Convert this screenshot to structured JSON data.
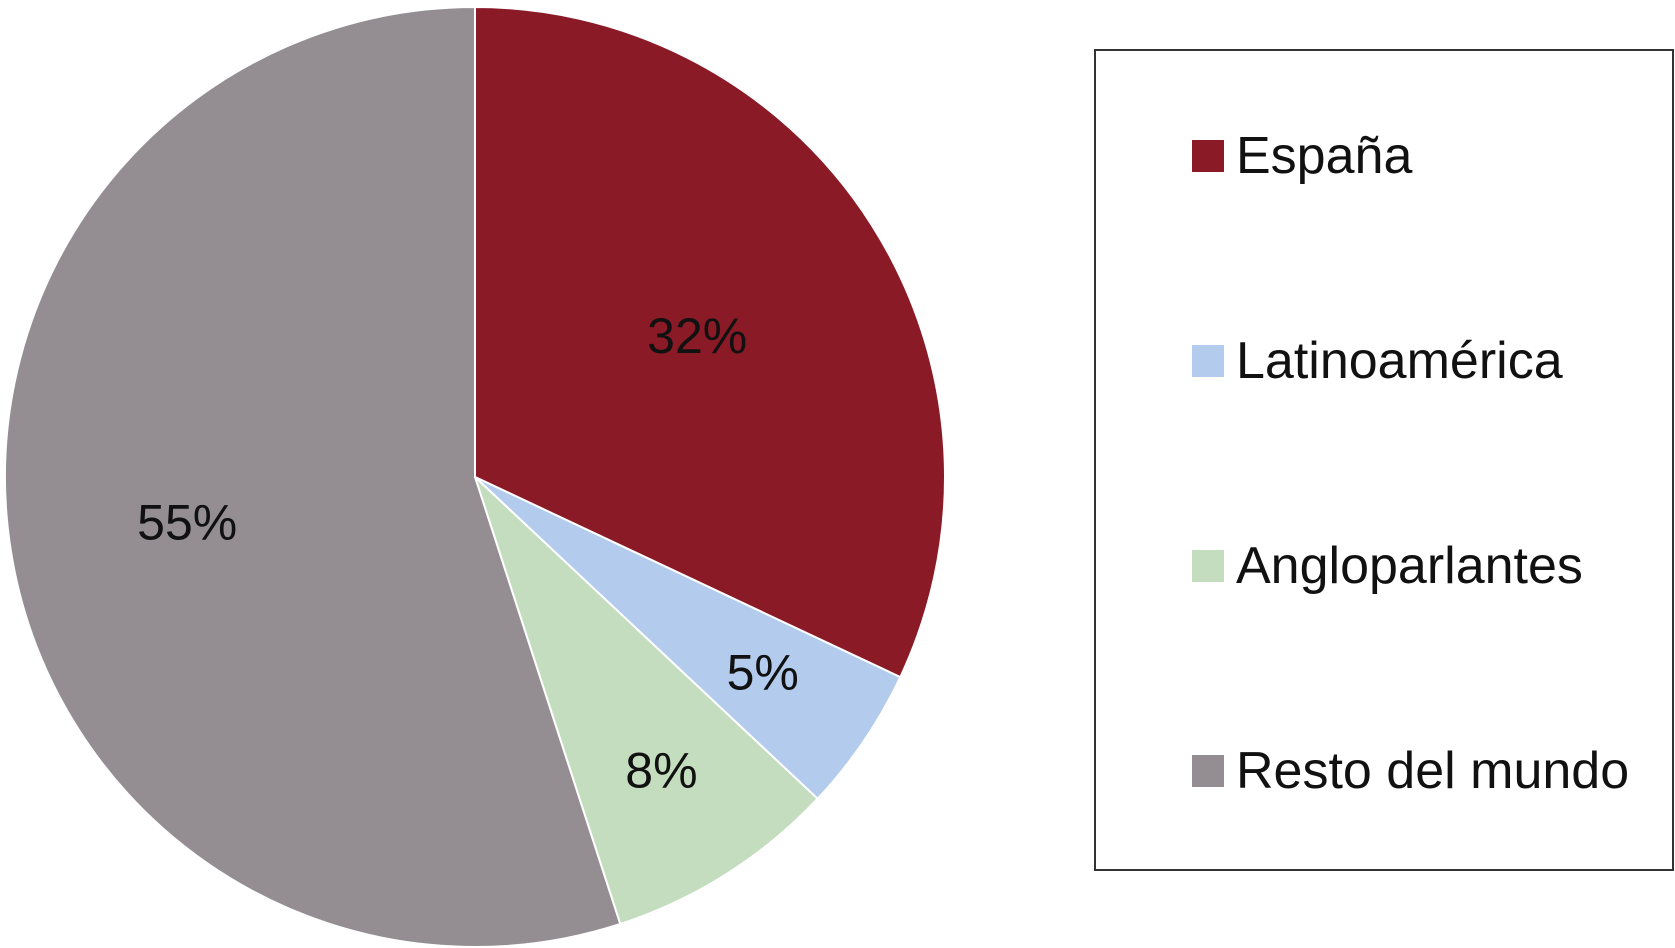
{
  "chart_data": {
    "type": "pie",
    "start_angle": "12 o'clock",
    "direction": "clockwise",
    "legend_placement": "right",
    "series": [
      {
        "name": "España",
        "value": 32,
        "label": "32%",
        "color": "#8B1A27"
      },
      {
        "name": "Latinoamérica",
        "value": 5,
        "label": "5%",
        "color": "#B3CBEC"
      },
      {
        "name": "Angloparlantes",
        "value": 8,
        "label": "8%",
        "color": "#C5DDBF"
      },
      {
        "name": "Resto del mundo",
        "value": 55,
        "label": "55%",
        "color": "#948E92"
      }
    ]
  }
}
